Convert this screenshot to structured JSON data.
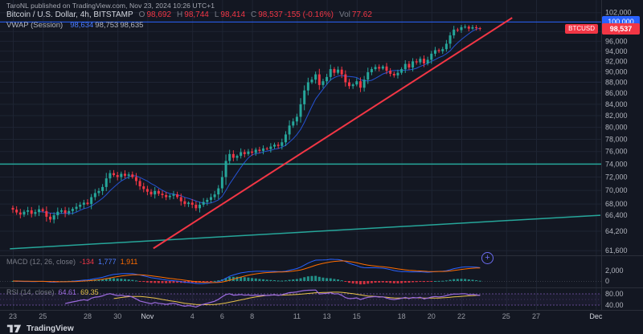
{
  "attribution": "TaroNL published on TradingView.com, Nov 23, 2024 10:26 UTC+1",
  "icons": {
    "plus": "+"
  },
  "colors": {
    "background": "#131722",
    "panel_border": "#2a2e39",
    "grid": "#1e2433",
    "up": "#26a69a",
    "down": "#f23645",
    "accent_blue": "#2962ff",
    "signal_orange": "#ff6d00",
    "rsi_purple": "#9c6bde",
    "rsi_ma_yellow": "#e8c34a",
    "text": "#b2b5be",
    "text_dim": "#787b86"
  },
  "legend": {
    "symbol": "Bitcoin / U.S. Dollar, 4h, BITSTAMP",
    "ohlc": {
      "o_label": "O",
      "o": "98,692",
      "h_label": "H",
      "h": "98,744",
      "l_label": "L",
      "l": "98,414",
      "c_label": "C",
      "c": "98,537",
      "change": "-155 (-0.16%)",
      "vol_label": "Vol",
      "vol": "77.62"
    },
    "vwap": {
      "label": "VWAP (Session)",
      "v1": "98,634",
      "v2": "98,753",
      "v3": "98,635"
    }
  },
  "price_axis": {
    "ticks": [
      {
        "label": "102,000",
        "v": 102000
      },
      {
        "label": "100,000",
        "v": 100000
      },
      {
        "label": "98,000",
        "v": 98000
      },
      {
        "label": "96,000",
        "v": 96000
      },
      {
        "label": "94,000",
        "v": 94000
      },
      {
        "label": "92,000",
        "v": 92000
      },
      {
        "label": "90,000",
        "v": 90000
      },
      {
        "label": "88,000",
        "v": 88000
      },
      {
        "label": "86,000",
        "v": 86000
      },
      {
        "label": "84,000",
        "v": 84000
      },
      {
        "label": "82,000",
        "v": 82000
      },
      {
        "label": "80,000",
        "v": 80000
      },
      {
        "label": "78,000",
        "v": 78000
      },
      {
        "label": "76,000",
        "v": 76000
      },
      {
        "label": "74,000",
        "v": 74000
      },
      {
        "label": "72,000",
        "v": 72000
      },
      {
        "label": "70,000",
        "v": 70000
      },
      {
        "label": "68,000",
        "v": 68000
      },
      {
        "label": "66,400",
        "v": 66400
      },
      {
        "label": "64,200",
        "v": 64200
      },
      {
        "label": "61,600",
        "v": 61600
      }
    ],
    "line_badge": "100,000",
    "symbol_badge": "BTCUSD",
    "last_price_badge": "98,537"
  },
  "indicators": {
    "macd": {
      "label": "MACD (12, 26, close)",
      "hist_value": "-134",
      "macd_value": "1,777",
      "signal_value": "1,911",
      "axis_ticks": [
        {
          "label": "2,000",
          "v": 2000
        },
        {
          "label": "0",
          "v": 0
        }
      ]
    },
    "rsi": {
      "label": "RSI (14, close)",
      "value": "64.61",
      "ma_value": "69.35",
      "axis_ticks": [
        {
          "label": "80.00",
          "v": 80
        },
        {
          "label": "40.00",
          "v": 40
        }
      ],
      "bands": [
        80,
        40
      ]
    }
  },
  "time_axis": {
    "labels": [
      {
        "t": "23",
        "d": 0
      },
      {
        "t": "25",
        "d": 2
      },
      {
        "t": "28",
        "d": 5
      },
      {
        "t": "30",
        "d": 7
      },
      {
        "t": "Nov",
        "d": 9,
        "b": true
      },
      {
        "t": "4",
        "d": 12
      },
      {
        "t": "6",
        "d": 14
      },
      {
        "t": "8",
        "d": 16
      },
      {
        "t": "11",
        "d": 19
      },
      {
        "t": "13",
        "d": 21
      },
      {
        "t": "15",
        "d": 23
      },
      {
        "t": "18",
        "d": 26
      },
      {
        "t": "20",
        "d": 28
      },
      {
        "t": "22",
        "d": 30
      },
      {
        "t": "25",
        "d": 33
      },
      {
        "t": "27",
        "d": 35
      },
      {
        "t": "Dec",
        "d": 39,
        "b": true
      }
    ]
  },
  "chart_data": {
    "type": "candlestick",
    "title": "Bitcoin / U.S. Dollar, 4h, BITSTAMP",
    "scale": "log",
    "ylim": [
      61000,
      102300
    ],
    "x_start": "Oct 23",
    "x_end": "Nov 23",
    "candles_per_day": 4,
    "closes": [
      67200,
      66800,
      66500,
      66900,
      67100,
      66600,
      66850,
      67250,
      67000,
      66200,
      65800,
      66400,
      66900,
      67100,
      66700,
      67000,
      67300,
      67600,
      67900,
      68200,
      68000,
      69000,
      69600,
      69900,
      70500,
      71800,
      72600,
      72300,
      72000,
      72500,
      72200,
      72400,
      72000,
      71400,
      70600,
      70200,
      69800,
      69400,
      69900,
      69500,
      69300,
      69000,
      69200,
      69400,
      69000,
      68400,
      68000,
      68200,
      67900,
      67400,
      67900,
      68300,
      68600,
      69000,
      69400,
      70300,
      72000,
      74500,
      75600,
      75000,
      75300,
      75900,
      75600,
      76000,
      75800,
      76300,
      76100,
      76500,
      76400,
      76800,
      77100,
      76900,
      77500,
      78800,
      80300,
      81000,
      81800,
      84000,
      86500,
      88000,
      88500,
      89500,
      87500,
      88200,
      89000,
      90500,
      89800,
      90400,
      89500,
      88000,
      87300,
      87600,
      88200,
      87000,
      88500,
      89900,
      90500,
      90900,
      90600,
      91000,
      90200,
      89600,
      89300,
      89800,
      90500,
      91500,
      90800,
      92000,
      91800,
      92500,
      91600,
      92300,
      93500,
      94200,
      94000,
      94400,
      95500,
      97200,
      98400,
      98300,
      98900,
      99000,
      98600,
      98900,
      98700,
      98537
    ],
    "last": {
      "open": 98692,
      "high": 98744,
      "low": 98414,
      "close": 98537,
      "change": -155,
      "change_pct": -0.16,
      "volume": 77.62
    },
    "vwap_last": 98634,
    "macd_last": {
      "hist": -134,
      "macd": 1777,
      "signal": 1911
    },
    "rsi_last": {
      "rsi": 64.61,
      "ma": 69.35
    },
    "lines": [
      {
        "name": "price-level-100k",
        "type": "hline",
        "price": 100000,
        "color": "#2962ff",
        "width": 1,
        "z": "over"
      },
      {
        "name": "support-level-74k",
        "type": "hline",
        "price": 74000,
        "color": "#26a69a",
        "width": 1.5
      },
      {
        "name": "ascending-trendline",
        "type": "segment",
        "d1": 9.4,
        "p1": 61900,
        "d2": 33.4,
        "p2": 100900,
        "color": "#f23645",
        "width": 2,
        "z": "over"
      },
      {
        "name": "lower-support-trendline",
        "type": "segment",
        "d1": -0.2,
        "p1": 61850,
        "d2": 39.3,
        "p2": 66400,
        "color": "#26a69a",
        "width": 1.5
      }
    ]
  },
  "footer": {
    "brand": "TradingView"
  }
}
